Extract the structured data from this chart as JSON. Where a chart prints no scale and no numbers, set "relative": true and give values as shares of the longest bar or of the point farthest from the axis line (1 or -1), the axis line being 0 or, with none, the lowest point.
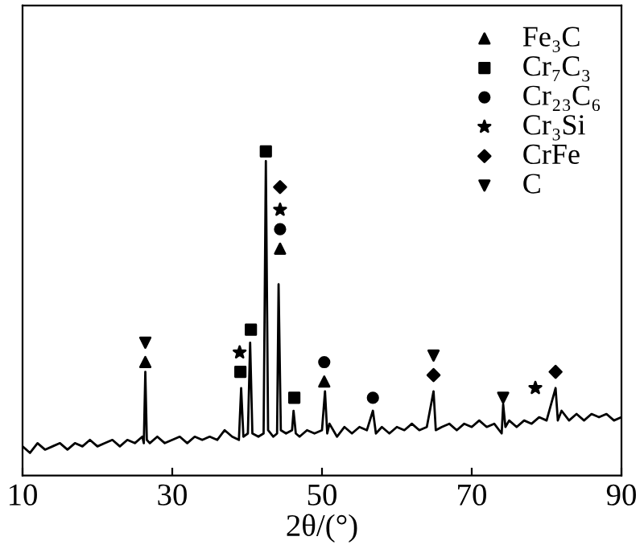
{
  "chart_data": {
    "type": "line",
    "relative": true,
    "xlabel": "2θ/(°)",
    "xlim": [
      10,
      90
    ],
    "xticks": [
      10,
      30,
      50,
      70,
      90
    ],
    "legend": "top right",
    "tick_labels": "x",
    "series": [
      {
        "color": "#000000",
        "x": [
          10,
          11,
          12,
          13,
          14,
          15,
          16,
          17,
          18,
          19,
          20,
          21,
          22,
          23,
          24,
          25,
          26,
          26.2,
          26.4,
          26.6,
          27,
          28,
          29,
          30,
          31,
          32,
          33,
          34,
          35,
          36,
          37,
          38,
          38.9,
          39.2,
          39.5,
          40.1,
          40.4,
          40.7,
          41.5,
          42.2,
          42.5,
          42.8,
          43.5,
          44.0,
          44.2,
          44.5,
          45.2,
          46.0,
          46.2,
          46.5,
          47,
          48,
          49,
          50,
          50.4,
          50.7,
          51,
          52,
          53,
          54,
          55,
          56,
          56.8,
          57.2,
          58,
          59,
          60,
          61,
          62,
          63,
          64,
          64.9,
          65.2,
          66,
          67,
          68,
          69,
          70,
          71,
          72,
          73,
          74,
          74.2,
          74.5,
          75,
          76,
          77,
          78,
          79,
          80,
          81.2,
          81.5,
          82,
          83,
          84,
          85,
          86,
          87,
          88,
          89,
          90
        ],
        "values": [
          0.09,
          0.07,
          0.1,
          0.08,
          0.09,
          0.1,
          0.08,
          0.1,
          0.09,
          0.11,
          0.09,
          0.1,
          0.11,
          0.09,
          0.11,
          0.1,
          0.12,
          0.1,
          0.32,
          0.11,
          0.1,
          0.12,
          0.1,
          0.11,
          0.12,
          0.1,
          0.12,
          0.11,
          0.12,
          0.11,
          0.14,
          0.12,
          0.11,
          0.27,
          0.12,
          0.13,
          0.41,
          0.13,
          0.12,
          0.13,
          0.97,
          0.14,
          0.12,
          0.13,
          0.59,
          0.14,
          0.13,
          0.14,
          0.2,
          0.13,
          0.12,
          0.14,
          0.13,
          0.14,
          0.26,
          0.13,
          0.16,
          0.12,
          0.15,
          0.13,
          0.15,
          0.14,
          0.2,
          0.13,
          0.15,
          0.13,
          0.15,
          0.14,
          0.16,
          0.14,
          0.15,
          0.26,
          0.14,
          0.15,
          0.16,
          0.14,
          0.16,
          0.15,
          0.17,
          0.15,
          0.16,
          0.13,
          0.22,
          0.15,
          0.17,
          0.15,
          0.17,
          0.16,
          0.18,
          0.17,
          0.27,
          0.17,
          0.2,
          0.17,
          0.19,
          0.17,
          0.19,
          0.18,
          0.19,
          0.17,
          0.18
        ]
      },
      {
        "type": "scatter",
        "name": "Fe₃C",
        "color": "#000000",
        "marker": "triangle",
        "x": [
          26.4,
          44.4,
          50.3
        ],
        "values": [
          0.35,
          0.7,
          0.29
        ]
      },
      {
        "type": "scatter",
        "name": "Cr₇C₃",
        "color": "#000000",
        "marker": "square",
        "x": [
          39.1,
          40.5,
          42.5,
          46.3
        ],
        "values": [
          0.32,
          0.45,
          1.0,
          0.24
        ]
      },
      {
        "type": "scatter",
        "name": "Cr₂₃C₆",
        "color": "#000000",
        "marker": "circle",
        "x": [
          44.4,
          50.3,
          56.8
        ],
        "values": [
          0.76,
          0.35,
          0.24
        ]
      },
      {
        "type": "scatter",
        "name": "Cr₃Si",
        "color": "#000000",
        "marker": "star",
        "x": [
          39.0,
          44.4,
          78.5
        ],
        "values": [
          0.38,
          0.82,
          0.27
        ]
      },
      {
        "type": "scatter",
        "name": "CrFe",
        "color": "#000000",
        "marker": "diamond",
        "x": [
          44.4,
          64.9,
          81.2
        ],
        "values": [
          0.89,
          0.31,
          0.32
        ]
      },
      {
        "type": "scatter",
        "name": "C",
        "color": "#000000",
        "marker": "triangle_down",
        "x": [
          26.4,
          64.9,
          74.2
        ],
        "values": [
          0.41,
          0.37,
          0.24
        ]
      }
    ]
  }
}
